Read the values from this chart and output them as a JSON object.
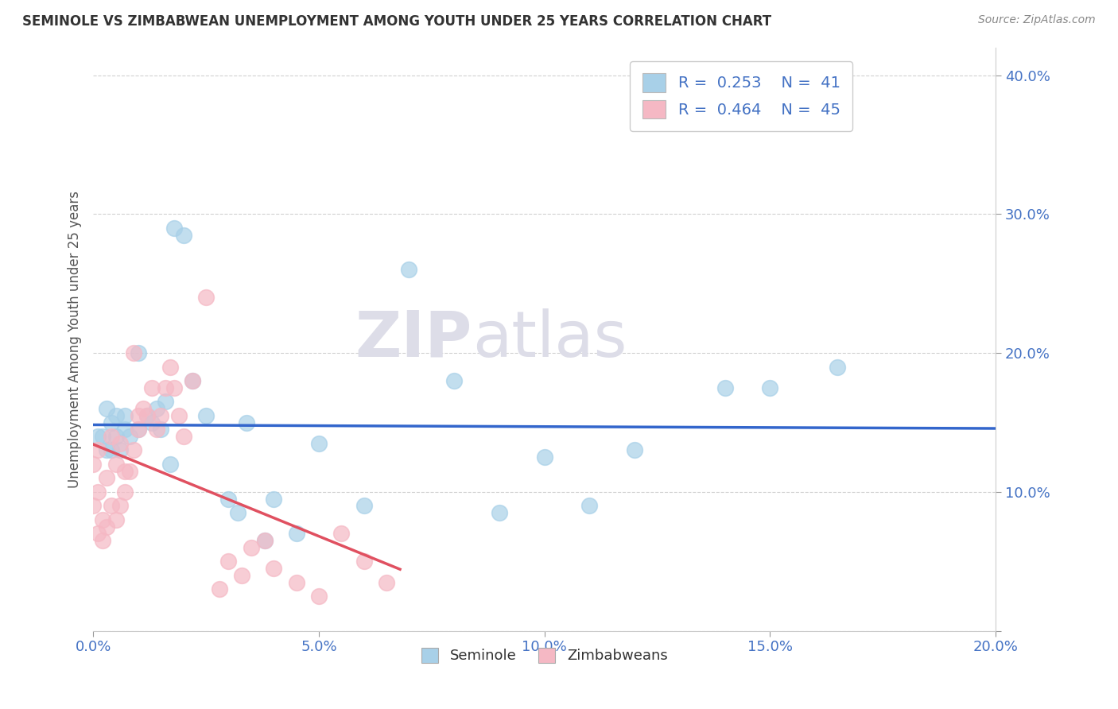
{
  "title": "SEMINOLE VS ZIMBABWEAN UNEMPLOYMENT AMONG YOUTH UNDER 25 YEARS CORRELATION CHART",
  "source": "Source: ZipAtlas.com",
  "ylabel": "Unemployment Among Youth under 25 years",
  "xlim": [
    0.0,
    0.2
  ],
  "ylim": [
    0.0,
    0.42
  ],
  "xticks": [
    0.0,
    0.05,
    0.1,
    0.15,
    0.2
  ],
  "xtick_labels": [
    "0.0%",
    "5.0%",
    "10.0%",
    "15.0%",
    "20.0%"
  ],
  "yticks": [
    0.0,
    0.1,
    0.2,
    0.3,
    0.4
  ],
  "ytick_labels": [
    "",
    "10.0%",
    "20.0%",
    "30.0%",
    "40.0%"
  ],
  "seminole_R": 0.253,
  "seminole_N": 41,
  "zimbabwean_R": 0.464,
  "zimbabwean_N": 45,
  "seminole_color": "#A8D0E8",
  "zimbabwean_color": "#F5B8C4",
  "seminole_line_color": "#3366CC",
  "zimbabwean_line_color": "#E05060",
  "seminole_x": [
    0.001,
    0.002,
    0.003,
    0.003,
    0.004,
    0.004,
    0.005,
    0.005,
    0.006,
    0.007,
    0.007,
    0.008,
    0.01,
    0.01,
    0.012,
    0.013,
    0.014,
    0.015,
    0.016,
    0.017,
    0.018,
    0.02,
    0.022,
    0.025,
    0.03,
    0.032,
    0.034,
    0.038,
    0.04,
    0.045,
    0.05,
    0.06,
    0.07,
    0.08,
    0.09,
    0.1,
    0.11,
    0.12,
    0.14,
    0.15,
    0.165
  ],
  "seminole_y": [
    0.14,
    0.14,
    0.13,
    0.16,
    0.13,
    0.15,
    0.14,
    0.155,
    0.13,
    0.145,
    0.155,
    0.14,
    0.145,
    0.2,
    0.155,
    0.15,
    0.16,
    0.145,
    0.165,
    0.12,
    0.29,
    0.285,
    0.18,
    0.155,
    0.095,
    0.085,
    0.15,
    0.065,
    0.095,
    0.07,
    0.135,
    0.09,
    0.26,
    0.18,
    0.085,
    0.125,
    0.09,
    0.13,
    0.175,
    0.175,
    0.19
  ],
  "zimbabwean_x": [
    0.0,
    0.0,
    0.001,
    0.001,
    0.001,
    0.002,
    0.002,
    0.003,
    0.003,
    0.004,
    0.004,
    0.005,
    0.005,
    0.006,
    0.006,
    0.007,
    0.007,
    0.008,
    0.009,
    0.009,
    0.01,
    0.01,
    0.011,
    0.012,
    0.013,
    0.014,
    0.015,
    0.016,
    0.017,
    0.018,
    0.019,
    0.02,
    0.022,
    0.025,
    0.028,
    0.03,
    0.033,
    0.035,
    0.038,
    0.04,
    0.045,
    0.05,
    0.055,
    0.06,
    0.065
  ],
  "zimbabwean_y": [
    0.09,
    0.12,
    0.07,
    0.1,
    0.13,
    0.065,
    0.08,
    0.075,
    0.11,
    0.09,
    0.14,
    0.08,
    0.12,
    0.09,
    0.135,
    0.1,
    0.115,
    0.115,
    0.2,
    0.13,
    0.145,
    0.155,
    0.16,
    0.155,
    0.175,
    0.145,
    0.155,
    0.175,
    0.19,
    0.175,
    0.155,
    0.14,
    0.18,
    0.24,
    0.03,
    0.05,
    0.04,
    0.06,
    0.065,
    0.045,
    0.035,
    0.025,
    0.07,
    0.05,
    0.035
  ]
}
